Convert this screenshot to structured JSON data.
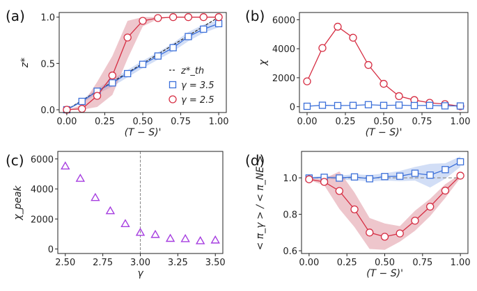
{
  "colors": {
    "red": "#d62e43",
    "red_band": "#d9808f",
    "blue": "#3b6fd9",
    "blue_band": "#9bb5ec",
    "purple": "#a63ee0",
    "ref_line": "#888888",
    "frame": "#222222"
  },
  "chart_data": [
    {
      "id": "a",
      "panel_label": "(a)",
      "type": "line",
      "xlabel": "(T − S)'",
      "ylabel": "z*",
      "xlim": [
        -0.05,
        1.05
      ],
      "ylim": [
        -0.03,
        1.05
      ],
      "xticks": [
        0.0,
        0.25,
        0.5,
        0.75,
        1.0
      ],
      "xtick_labels": [
        "0.00",
        "0.25",
        "0.50",
        "0.75",
        "1.00"
      ],
      "yticks": [
        0.0,
        0.5,
        1.0
      ],
      "ytick_labels": [
        "0.0",
        "0.5",
        "1.0"
      ],
      "legend": {
        "placement": "lower-right",
        "entries": [
          {
            "label": "z*_th",
            "marker": "dashed-line",
            "color": "#222222"
          },
          {
            "label": "γ = 3.5",
            "marker": "square",
            "color": "#3b6fd9"
          },
          {
            "label": "γ = 2.5",
            "marker": "circle",
            "color": "#d62e43"
          }
        ]
      },
      "x": [
        0.0,
        0.1,
        0.2,
        0.3,
        0.4,
        0.5,
        0.6,
        0.7,
        0.8,
        0.9,
        1.0
      ],
      "reference_line": {
        "name": "z*_th",
        "x": [
          0.0,
          1.0
        ],
        "y": [
          0.0,
          1.0
        ],
        "style": "dashed",
        "color": "#222222"
      },
      "series": [
        {
          "name": "γ = 3.5",
          "marker": "square",
          "color": "#3b6fd9",
          "values": [
            0.0,
            0.09,
            0.2,
            0.29,
            0.39,
            0.49,
            0.58,
            0.67,
            0.79,
            0.87,
            0.93
          ],
          "band_lower": [
            0.0,
            0.07,
            0.17,
            0.25,
            0.35,
            0.45,
            0.54,
            0.63,
            0.74,
            0.83,
            0.89
          ],
          "band_upper": [
            0.0,
            0.11,
            0.23,
            0.33,
            0.43,
            0.53,
            0.62,
            0.72,
            0.84,
            0.92,
            0.97
          ]
        },
        {
          "name": "γ = 2.5",
          "marker": "circle",
          "color": "#d62e43",
          "values": [
            0.0,
            0.01,
            0.15,
            0.37,
            0.78,
            0.96,
            0.99,
            1.0,
            1.0,
            1.0,
            1.0
          ],
          "band_lower": [
            0.0,
            0.0,
            0.03,
            0.16,
            0.55,
            0.9,
            0.98,
            1.0,
            1.0,
            1.0,
            1.0
          ],
          "band_upper": [
            0.0,
            0.05,
            0.3,
            0.58,
            0.96,
            1.0,
            1.0,
            1.0,
            1.0,
            1.0,
            1.0
          ]
        }
      ]
    },
    {
      "id": "b",
      "panel_label": "(b)",
      "type": "line",
      "xlabel": "(T − S)'",
      "ylabel": "χ",
      "xlim": [
        -0.05,
        1.05
      ],
      "ylim": [
        -400,
        6500
      ],
      "xticks": [
        0.0,
        0.25,
        0.5,
        0.75,
        1.0
      ],
      "xtick_labels": [
        "0.00",
        "0.25",
        "0.50",
        "0.75",
        "1.00"
      ],
      "yticks": [
        0,
        2000,
        4000,
        6000
      ],
      "ytick_labels": [
        "0",
        "2000",
        "4000",
        "6000"
      ],
      "x": [
        0.0,
        0.1,
        0.2,
        0.3,
        0.4,
        0.5,
        0.6,
        0.7,
        0.8,
        0.9,
        1.0
      ],
      "series": [
        {
          "name": "γ = 2.5",
          "marker": "circle",
          "color": "#d62e43",
          "values": [
            1750,
            4050,
            5520,
            4760,
            2880,
            1580,
            730,
            460,
            270,
            180,
            30
          ]
        },
        {
          "name": "γ = 3.5",
          "marker": "square",
          "color": "#3b6fd9",
          "values": [
            30,
            100,
            80,
            90,
            140,
            90,
            110,
            80,
            90,
            60,
            50
          ]
        }
      ]
    },
    {
      "id": "c",
      "panel_label": "(c)",
      "type": "scatter",
      "xlabel": "γ",
      "ylabel": "χ_peak",
      "xlim": [
        2.45,
        3.55
      ],
      "ylim": [
        -300,
        6500
      ],
      "xticks": [
        2.5,
        2.75,
        3.0,
        3.25,
        3.5
      ],
      "xtick_labels": [
        "2.50",
        "2.75",
        "3.00",
        "3.25",
        "3.50"
      ],
      "yticks": [
        0,
        2000,
        4000,
        6000
      ],
      "ytick_labels": [
        "0",
        "2000",
        "4000",
        "6000"
      ],
      "vertical_line": {
        "x": 3.0,
        "style": "dashed",
        "color": "#888888"
      },
      "x": [
        2.5,
        2.6,
        2.7,
        2.8,
        2.9,
        3.0,
        3.1,
        3.2,
        3.3,
        3.4,
        3.5
      ],
      "series": [
        {
          "name": "χ_peak",
          "marker": "triangle",
          "color": "#a63ee0",
          "values": [
            5520,
            4700,
            3420,
            2540,
            1680,
            1100,
            960,
            700,
            680,
            540,
            590
          ]
        }
      ]
    },
    {
      "id": "d",
      "panel_label": "(d)",
      "type": "line",
      "xlabel": "(T − S)'",
      "ylabel": "< π_γ > / < π_NE >",
      "xlim": [
        -0.05,
        1.05
      ],
      "ylim": [
        0.585,
        1.145
      ],
      "xticks": [
        0.0,
        0.25,
        0.5,
        0.75,
        1.0
      ],
      "xtick_labels": [
        "0.00",
        "0.25",
        "0.50",
        "0.75",
        "1.00"
      ],
      "yticks": [
        0.6,
        0.8,
        1.0
      ],
      "ytick_labels": [
        "0.6",
        "0.8",
        "1.0"
      ],
      "reference_line": {
        "name": "baseline",
        "y": 1.0,
        "style": "dashed",
        "color": "#888888"
      },
      "x": [
        0.0,
        0.1,
        0.2,
        0.3,
        0.4,
        0.5,
        0.6,
        0.7,
        0.8,
        0.9,
        1.0
      ],
      "series": [
        {
          "name": "γ = 3.5",
          "marker": "square",
          "color": "#3b6fd9",
          "values": [
            0.999,
            1.003,
            0.999,
            1.005,
            0.995,
            1.007,
            1.009,
            1.025,
            1.015,
            1.045,
            1.088
          ],
          "band_lower": [
            0.993,
            0.995,
            0.99,
            0.987,
            0.98,
            0.985,
            0.982,
            0.985,
            0.947,
            0.995,
            1.06
          ],
          "band_upper": [
            1.005,
            1.01,
            1.012,
            1.02,
            1.015,
            1.025,
            1.038,
            1.06,
            1.077,
            1.08,
            1.118
          ]
        },
        {
          "name": "γ = 2.5",
          "marker": "circle",
          "color": "#d62e43",
          "values": [
            0.992,
            0.978,
            0.928,
            0.827,
            0.7,
            0.677,
            0.695,
            0.765,
            0.842,
            0.93,
            1.012
          ],
          "band_lower": [
            0.988,
            0.96,
            0.83,
            0.73,
            0.61,
            0.605,
            0.65,
            0.71,
            0.79,
            0.89,
            1.0
          ],
          "band_upper": [
            0.995,
            0.995,
            1.035,
            0.92,
            0.78,
            0.75,
            0.735,
            0.82,
            0.885,
            0.965,
            1.02
          ]
        }
      ]
    }
  ]
}
